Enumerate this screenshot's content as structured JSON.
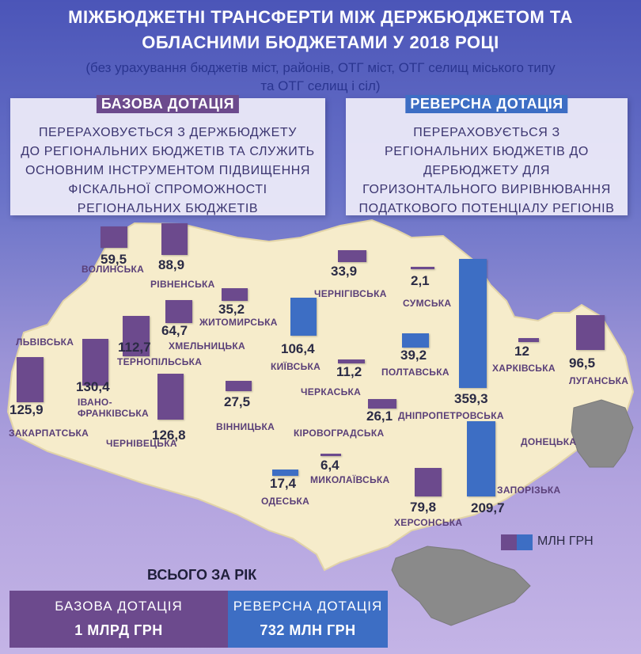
{
  "title_line1": "МІЖБЮДЖЕТНІ ТРАНСФЕРТИ МІЖ ДЕРЖБЮДЖЕТОМ ТА",
  "title_line2": "ОБЛАСНИМИ БЮДЖЕТАМИ У 2018 РОЦІ",
  "subtitle_line1": "(без урахування бюджетів міст, районів, ОТГ міст, ОТГ селищ міського типу",
  "subtitle_line2": "та ОТГ селищ і сіл)",
  "base_panel": {
    "tag": "БАЗОВА ДОТАЦІЯ",
    "lines": [
      "ПЕРЕРАХОВУЄТЬСЯ З ДЕРЖБЮДЖЕТУ",
      "ДО РЕГІОНАЛЬНИХ БЮДЖЕТІВ ТА СЛУЖИТЬ",
      "ОСНОВНИМ ІНСТРУМЕНТОМ ПІДВИЩЕННЯ",
      "ФІСКАЛЬНОЇ СПРОМОЖНОСТІ",
      "РЕГІОНАЛЬНИХ БЮДЖЕТІВ"
    ]
  },
  "reverse_panel": {
    "tag": "РЕВЕРСНА ДОТАЦІЯ",
    "lines": [
      "ПЕРЕРАХОВУЄТЬСЯ З",
      "РЕГІОНАЛЬНИХ БЮДЖЕТІВ ДО",
      "ДЕРБЮДЖЕТУ ДЛЯ",
      "ГОРИЗОНТАЛЬНОГО ВИРІВНЮВАННЯ",
      "ПОДАТКОВОГО ПОТЕНЦІАЛУ РЕГІОНІВ"
    ]
  },
  "colors": {
    "base": "#6c4a8d",
    "reverse": "#3d6ec4",
    "map_fill": "#f6eccb",
    "occupied": "#8a8a8a"
  },
  "regions": [
    {
      "name": "ВОЛИНСЬКА",
      "value": 59.5,
      "value_label": "59,5",
      "type": "base"
    },
    {
      "name": "РІВНЕНСЬКА",
      "value": 88.9,
      "value_label": "88,9",
      "type": "base"
    },
    {
      "name": "ЖИТОМИРСЬКА",
      "value": 35.2,
      "value_label": "35,2",
      "type": "base"
    },
    {
      "name": "ХМЕЛЬНИЦЬКА",
      "value": 64.7,
      "value_label": "64,7",
      "type": "base"
    },
    {
      "name": "ТЕРНОПІЛЬСЬКА",
      "value": 112.7,
      "value_label": "112,7",
      "type": "base"
    },
    {
      "name": "ЛЬВІВСЬКА",
      "value": 130.4,
      "value_label": "130,4",
      "type": "base"
    },
    {
      "name": "ЗАКАРПАТСЬКА",
      "value": 125.9,
      "value_label": "125,9",
      "type": "base"
    },
    {
      "name": "ІВАНО-ФРАНКІВСЬКА",
      "value": 130.4,
      "value_label": "130,4",
      "type": "base"
    },
    {
      "name": "ЧЕРНІВЕЦЬКА",
      "value": 126.8,
      "value_label": "126,8",
      "type": "base"
    },
    {
      "name": "ВІННИЦЬКА",
      "value": 27.5,
      "value_label": "27,5",
      "type": "base"
    },
    {
      "name": "КИЇВСЬКА",
      "value": 106.4,
      "value_label": "106,4",
      "type": "reverse"
    },
    {
      "name": "ЧЕРНІГІВСЬКА",
      "value": 33.9,
      "value_label": "33,9",
      "type": "base"
    },
    {
      "name": "СУМСЬКА",
      "value": 2.1,
      "value_label": "2,1",
      "type": "base"
    },
    {
      "name": "ПОЛТАВСЬКА",
      "value": 39.2,
      "value_label": "39,2",
      "type": "reverse"
    },
    {
      "name": "ЧЕРКАСЬКА",
      "value": 11.2,
      "value_label": "11,2",
      "type": "base"
    },
    {
      "name": "КІРОВОГРАДСЬКА",
      "value": 26.1,
      "value_label": "26,1",
      "type": "base"
    },
    {
      "name": "ДНІПРОПЕТРОВСЬКА",
      "value": 359.3,
      "value_label": "359,3",
      "type": "reverse"
    },
    {
      "name": "ХАРКІВСЬКА",
      "value": 12,
      "value_label": "12",
      "type": "base"
    },
    {
      "name": "ЛУГАНСЬКА",
      "value": 96.5,
      "value_label": "96,5",
      "type": "base"
    },
    {
      "name": "ДОНЕЦЬКА",
      "value": null,
      "value_label": "",
      "type": "none"
    },
    {
      "name": "ОДЕСЬКА",
      "value": 17.4,
      "value_label": "17,4",
      "type": "reverse"
    },
    {
      "name": "МИКОЛАЇВСЬКА",
      "value": 6.4,
      "value_label": "6,4",
      "type": "base"
    },
    {
      "name": "ХЕРСОНСЬКА",
      "value": 79.8,
      "value_label": "79,8",
      "type": "base"
    },
    {
      "name": "ЗАПОРІЗЬКА",
      "value": 209.7,
      "value_label": "209,7",
      "type": "reverse"
    }
  ],
  "legend_label": "МЛН ГРН",
  "totals": {
    "heading": "ВСЬОГО ЗА РІК",
    "base_label": "БАЗОВА ДОТАЦІЯ",
    "base_value": "1 МЛРД ГРН",
    "reverse_label": "РЕВЕРСНА ДОТАЦІЯ",
    "reverse_value": "732 МЛН ГРН"
  }
}
